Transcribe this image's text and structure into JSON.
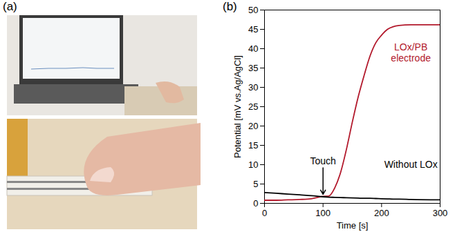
{
  "panel_labels": [
    "(a)",
    "(b)"
  ],
  "chart_data": {
    "type": "line",
    "xlabel": "Time [s]",
    "ylabel": "Potential [mV vs.Ag/AgCl]",
    "x": [
      0,
      20,
      40,
      60,
      80,
      100,
      110,
      120,
      130,
      140,
      150,
      160,
      170,
      180,
      190,
      200,
      210,
      220,
      230,
      250,
      300
    ],
    "series": [
      {
        "name": "LOx/PB\nelectrode",
        "color": "#b2182b",
        "values": [
          0.8,
          0.8,
          0.9,
          1.0,
          1.2,
          1.8,
          1.9,
          4,
          8,
          14,
          21,
          27.5,
          33,
          38,
          41.5,
          43.5,
          45,
          45.7,
          46,
          46.2,
          46.2
        ]
      },
      {
        "name": "Without LOx",
        "color": "#000000",
        "values": [
          2.8,
          2.6,
          2.4,
          2.2,
          2.0,
          1.7,
          1.6,
          1.55,
          1.5,
          1.45,
          1.4,
          1.35,
          1.3,
          1.3,
          1.25,
          1.2,
          1.15,
          1.1,
          1.1,
          1.0,
          0.9
        ]
      }
    ],
    "annotations": [
      {
        "text": "LOx/PB\nelectrode",
        "x": 250,
        "y": 39,
        "color": "#b2182b"
      },
      {
        "text": "Without LOx",
        "x": 250,
        "y": 10,
        "color": "#000000"
      },
      {
        "text": "Touch",
        "x": 100,
        "y": 11,
        "color": "#000000",
        "arrow": true
      }
    ],
    "xlim": [
      0,
      300
    ],
    "xticks": [
      0,
      100,
      200,
      300
    ],
    "ylim": [
      0,
      50
    ],
    "yticks": [
      0,
      5,
      10,
      15,
      20,
      25,
      30,
      35,
      40,
      45,
      50
    ],
    "grid": false
  }
}
